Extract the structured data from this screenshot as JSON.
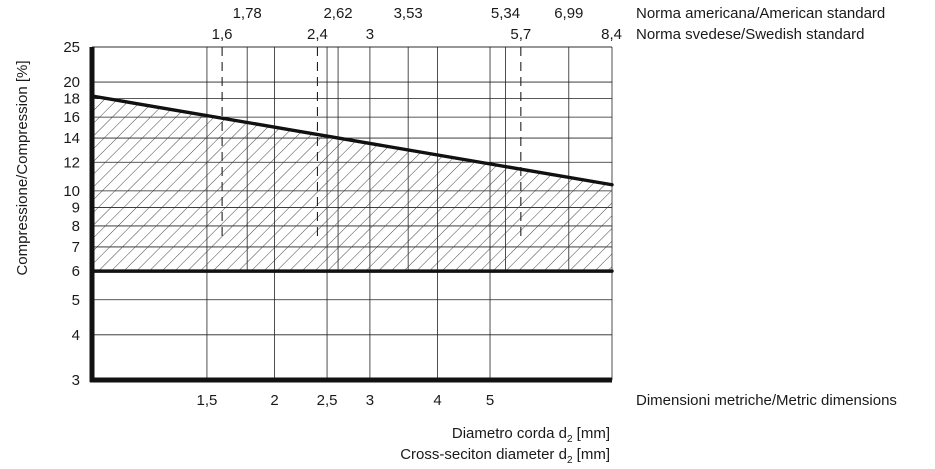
{
  "chart_data": {
    "type": "area",
    "y_scale": "log",
    "ylim": [
      3,
      25
    ],
    "xlim": [
      0.92,
      8.4
    ],
    "x_scale": "log",
    "ylabel": "Compressione/Compression [%]",
    "y_ticks": [
      3,
      4,
      5,
      6,
      7,
      8,
      9,
      10,
      12,
      14,
      16,
      18,
      20,
      25
    ],
    "x_bottom_ticks": [
      1.5,
      2,
      2.5,
      3,
      4,
      5
    ],
    "x_bottom_tick_labels": [
      "1,5",
      "2",
      "2,5",
      "3",
      "4",
      "5"
    ],
    "x_bottom_label": "Dimensioni metriche/Metric dimensions",
    "american_ticks": [
      1.78,
      2.62,
      3.53,
      5.34,
      6.99
    ],
    "american_tick_labels": [
      "1,78",
      "2,62",
      "3,53",
      "5,34",
      "6,99"
    ],
    "american_label": "Norma americana/American standard",
    "swedish_ticks": [
      1.6,
      2.4,
      3,
      5.7,
      8.4
    ],
    "swedish_tick_labels": [
      "1,6",
      "2,4",
      "3",
      "5,7",
      "8,4"
    ],
    "swedish_label": "Norma svedese/Swedish standard",
    "xlabel_line1": "Diametro corda d",
    "xlabel_line2": "Cross-seciton diameter d",
    "xlabel_subscript": "2",
    "xlabel_unit": " [mm]",
    "series": [
      {
        "x": [
          0.92,
          8.4
        ],
        "values": [
          18.3,
          10.4
        ]
      },
      {
        "x": [
          0.92,
          8.4
        ],
        "values": [
          6,
          6
        ]
      }
    ],
    "dashed_verticals": [
      1.6,
      2.4,
      5.7
    ],
    "grid": true,
    "hatched_region": "between upper and lower lines"
  }
}
